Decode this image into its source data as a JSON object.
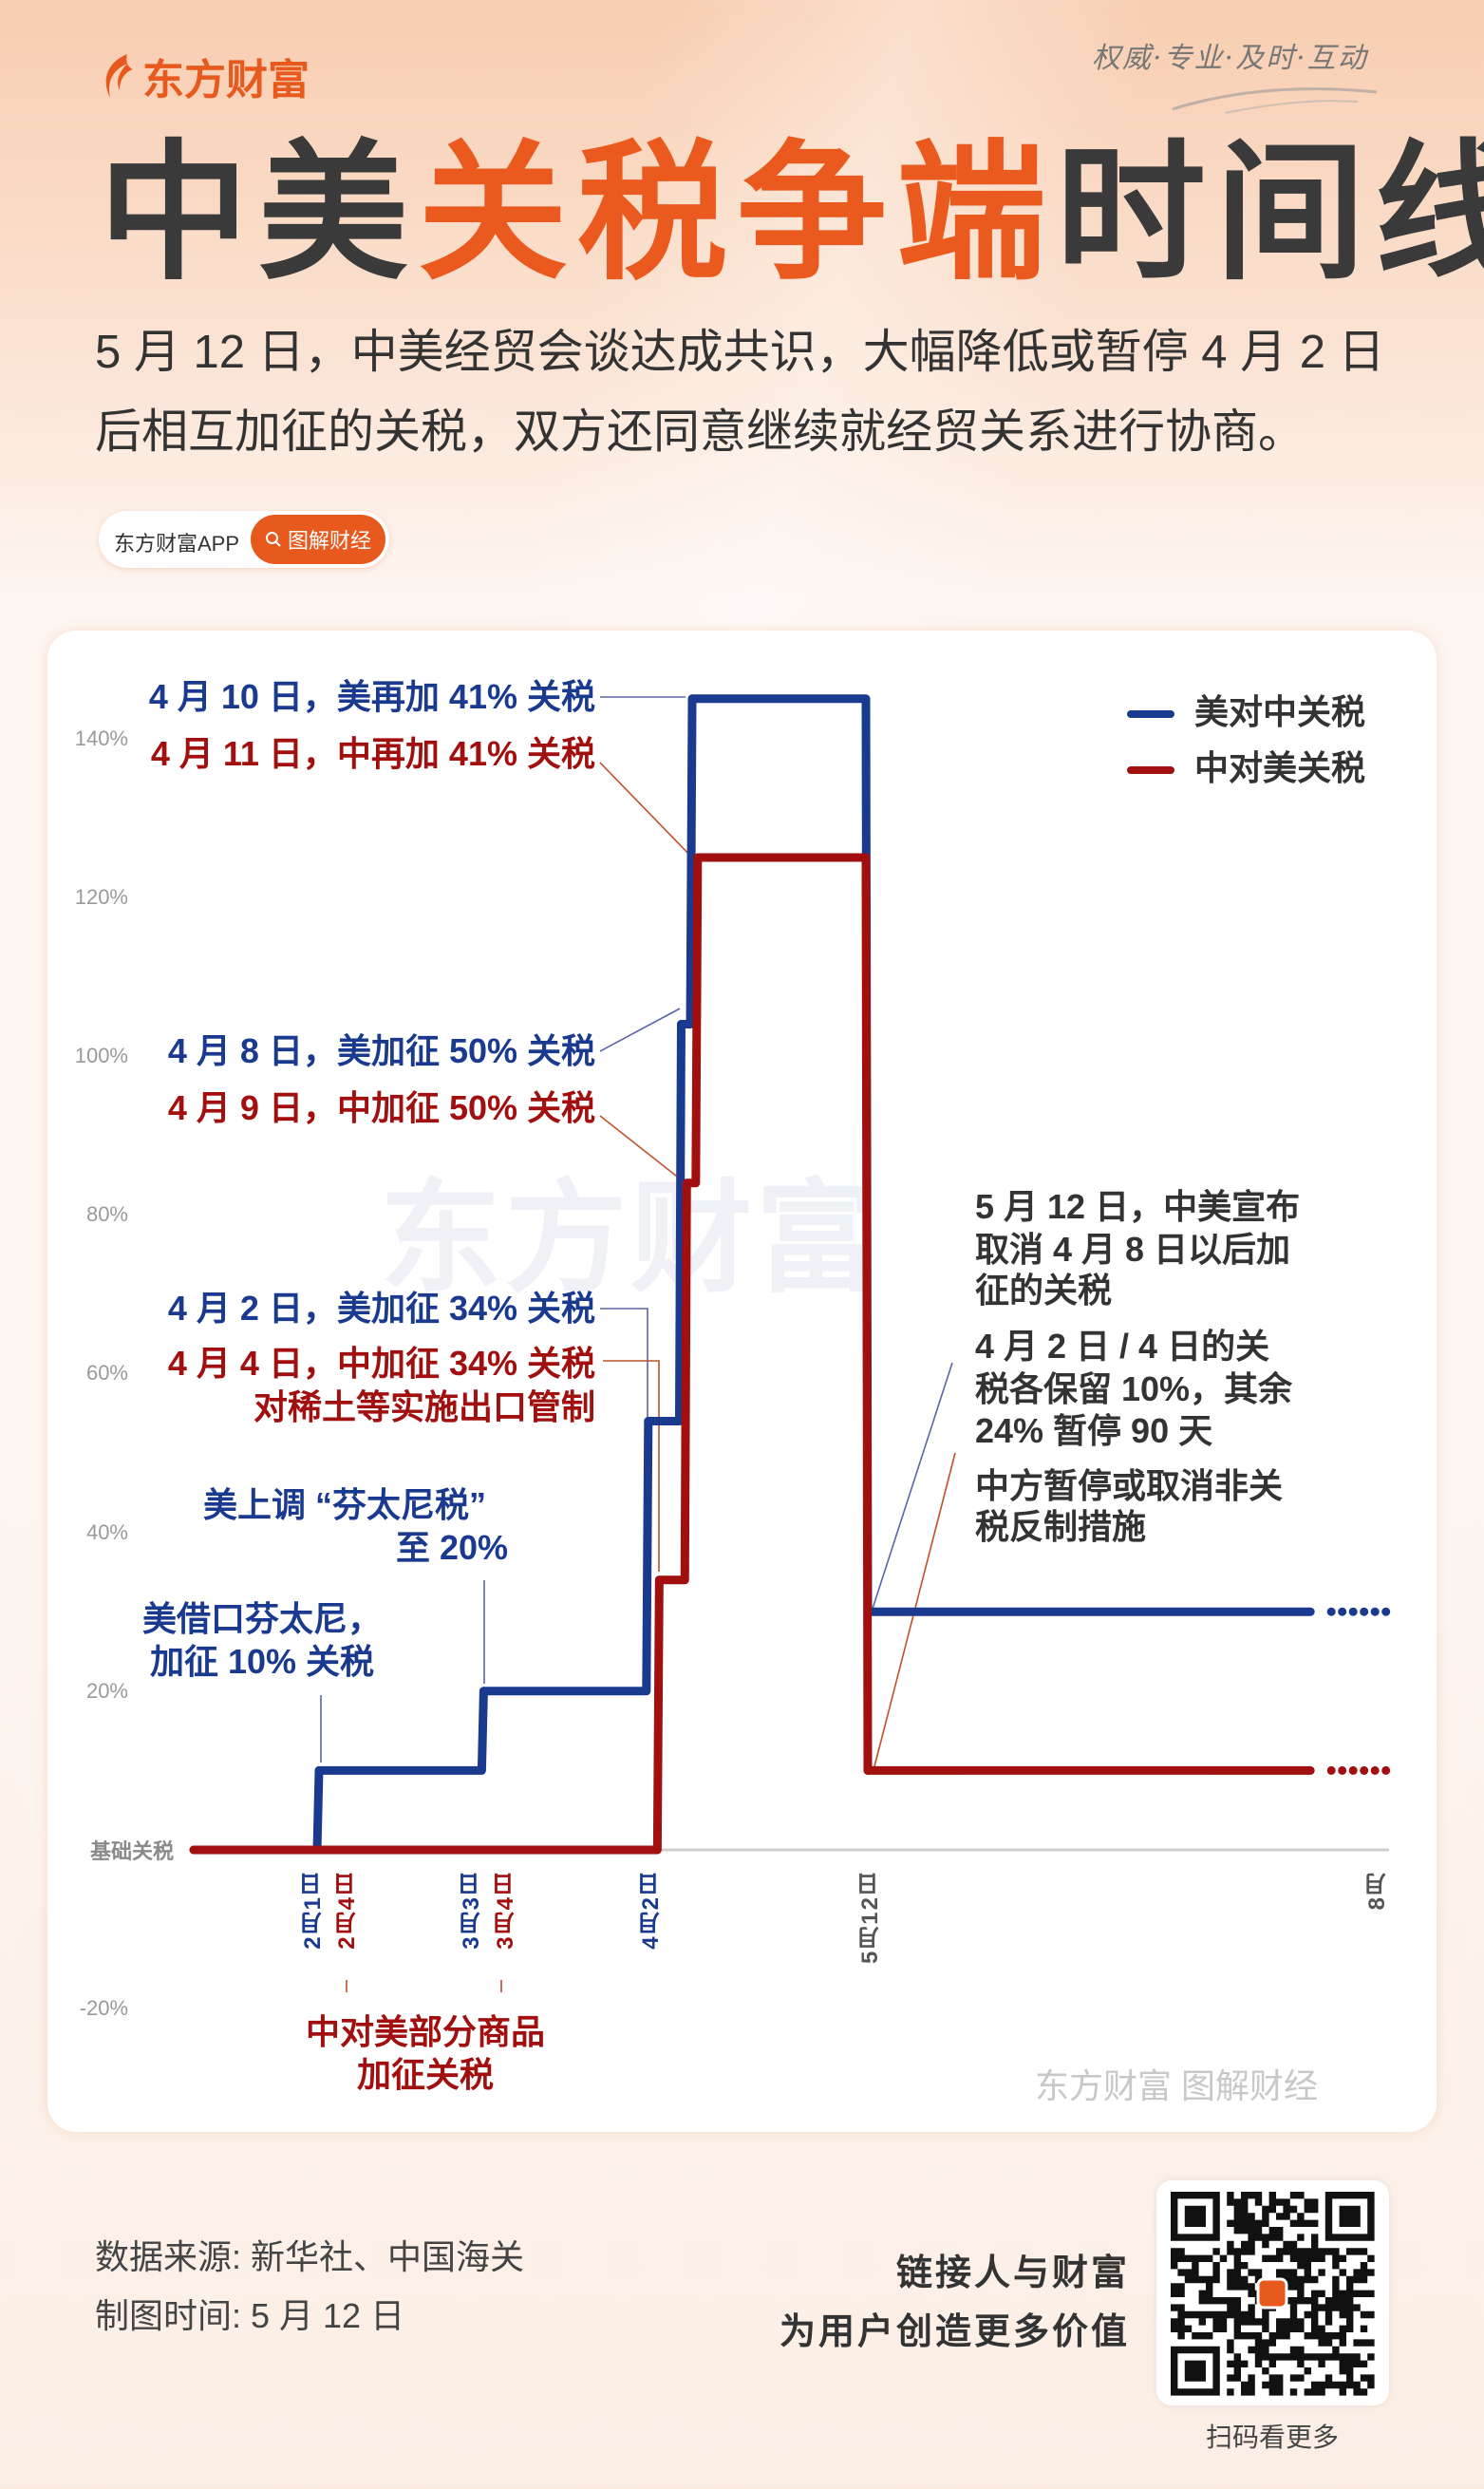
{
  "brand": {
    "name": "东方财富",
    "slogan": "权威·专业·及时·互动",
    "accent": "#e8591e"
  },
  "title": {
    "part1": "中美",
    "part2": "关税争端",
    "part3": "时间线"
  },
  "subtitle": [
    "5 月 12 日，中美经贸会谈达成共识，大幅降低或暂停 4 月 2 日",
    "后相互加征的关税，双方还同意继续就经贸关系进行协商。"
  ],
  "pill": {
    "app": "东方财富APP",
    "tag": "图解财经",
    "tag_icon": "search-icon"
  },
  "chart_data": {
    "type": "line",
    "step": true,
    "yticks": [
      {
        "value": 140,
        "label": "140%"
      },
      {
        "value": 120,
        "label": "120%"
      },
      {
        "value": 100,
        "label": "100%"
      },
      {
        "value": 80,
        "label": "80%"
      },
      {
        "value": 60,
        "label": "60%"
      },
      {
        "value": 40,
        "label": "40%"
      },
      {
        "value": 20,
        "label": "20%"
      },
      {
        "value": 0,
        "label": "基础关税"
      },
      {
        "value": -20,
        "label": "-20%"
      }
    ],
    "ylim": [
      -20,
      150
    ],
    "legend_position": "top-right",
    "series": [
      {
        "name": "美对中关税",
        "color": "#1a3a8f",
        "start": 0,
        "steps": [
          {
            "date": "02-01",
            "value": 10
          },
          {
            "date": "03-03",
            "value": 20
          },
          {
            "date": "04-02",
            "value": 54
          },
          {
            "date": "04-08",
            "value": 104
          },
          {
            "date": "04-10",
            "value": 145
          },
          {
            "date": "05-12",
            "value": 30
          }
        ],
        "continues_after": "08-01"
      },
      {
        "name": "中对美关税",
        "color": "#a10f0f",
        "start": 0,
        "steps": [
          {
            "date": "04-04",
            "value": 34
          },
          {
            "date": "04-09",
            "value": 84
          },
          {
            "date": "04-11",
            "value": 125
          },
          {
            "date": "05-12",
            "value": 10
          }
        ],
        "continues_after": "08-01"
      }
    ],
    "xticks": [
      {
        "label": "2月1日",
        "date": "02-01",
        "color": "#1a3a8f"
      },
      {
        "label": "2月4日",
        "date": "02-04",
        "color": "#a10f0f"
      },
      {
        "label": "3月3日",
        "date": "03-03",
        "color": "#1a3a8f"
      },
      {
        "label": "3月4日",
        "date": "03-04",
        "color": "#a10f0f"
      },
      {
        "label": "4月2日",
        "date": "04-02",
        "color": "#1a3a8f"
      },
      {
        "label": "5月12日",
        "date": "05-12",
        "color": "#555555"
      },
      {
        "label": "8月",
        "date": "08-01",
        "color": "#555555"
      }
    ],
    "annotations": [
      {
        "text": "4 月 10 日，美再加 41% 关税",
        "color": "blue"
      },
      {
        "text": "4 月 11 日，中再加 41% 关税",
        "color": "red"
      },
      {
        "text": "4 月 8 日，美加征 50% 关税",
        "color": "blue"
      },
      {
        "text": "4 月 9 日，中加征 50% 关税",
        "color": "red"
      },
      {
        "text": "4 月 2 日，美加征 34% 关税",
        "color": "blue"
      },
      {
        "text": "4 月 4 日，中加征 34% 关税",
        "color": "red"
      },
      {
        "text": "对稀土等实施出口管制",
        "color": "red"
      },
      {
        "text": "美上调 “芬太尼税”",
        "color": "blue"
      },
      {
        "text": "至 20%",
        "color": "blue"
      },
      {
        "text": "美借口芬太尼，",
        "color": "blue"
      },
      {
        "text": "加征 10% 关税",
        "color": "blue"
      },
      {
        "text": "中对美部分商品",
        "color": "red"
      },
      {
        "text": "加征关税",
        "color": "red"
      }
    ],
    "notes": [
      "5 月 12 日，中美宣布",
      "取消 4 月 8 日以后加",
      "征的关税",
      "4 月 2 日 / 4 日的关",
      "税各保留 10%，其余",
      "24% 暂停 90 天",
      "中方暂停或取消非关",
      "税反制措施"
    ]
  },
  "watermark": "东方财富",
  "chart_footer_watermark": "东方财富 图解财经",
  "footer": {
    "source": "数据来源: 新华社、中国海关",
    "date": "制图时间: 5 月 12 日",
    "slogan1": "链接人与财富",
    "slogan2": "为用户创造更多价值",
    "qr_caption": "扫码看更多"
  }
}
